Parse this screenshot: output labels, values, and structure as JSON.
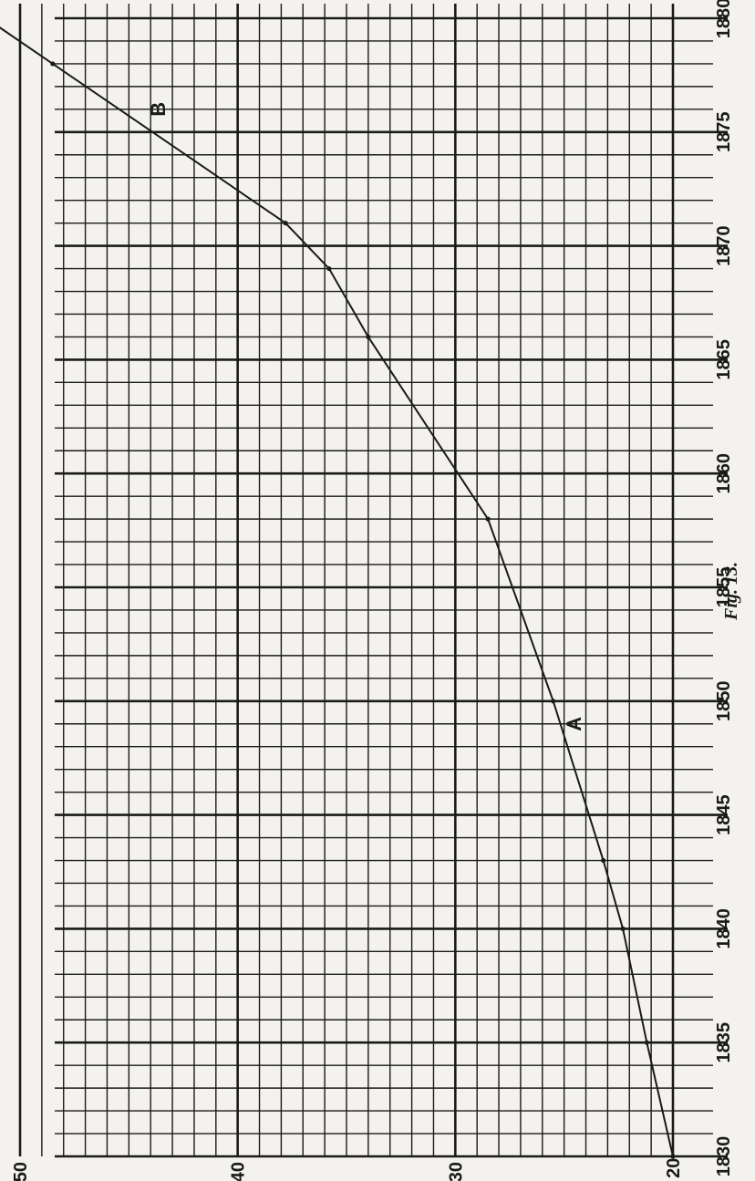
{
  "chart_data": {
    "type": "line",
    "caption": "Fig. 13.",
    "xlim": [
      1830,
      1880
    ],
    "ylim": [
      20,
      50
    ],
    "x_ticks": [
      {
        "value": 1830,
        "label": "1830"
      },
      {
        "value": 1835,
        "label": "1835"
      },
      {
        "value": 1840,
        "label": "1840"
      },
      {
        "value": 1845,
        "label": "1845"
      },
      {
        "value": 1850,
        "label": "1850"
      },
      {
        "value": 1855,
        "label": "1855"
      },
      {
        "value": 1860,
        "label": "1860"
      },
      {
        "value": 1865,
        "label": "1865"
      },
      {
        "value": 1870,
        "label": "1870"
      },
      {
        "value": 1875,
        "label": "1875"
      },
      {
        "value": 1880,
        "label": "1880"
      }
    ],
    "y_ticks": [
      {
        "value": 20,
        "label": "20"
      },
      {
        "value": 30,
        "label": "30"
      },
      {
        "value": 40,
        "label": "40"
      },
      {
        "value": 50,
        "label": "50"
      }
    ],
    "grid": true,
    "series": [
      {
        "x": [
          1830,
          1835,
          1840,
          1843,
          1850,
          1858,
          1866,
          1869,
          1871,
          1878
        ],
        "y": [
          20,
          21.2,
          22.3,
          23.2,
          25.5,
          28.5,
          34,
          35.8,
          37.8,
          48.5
        ],
        "color": "#1a1a1a"
      }
    ],
    "point_labels": [
      {
        "text": "A",
        "x": 1849,
        "y": 24.4
      },
      {
        "text": "B",
        "x": 1876,
        "y": 43.5
      }
    ]
  }
}
